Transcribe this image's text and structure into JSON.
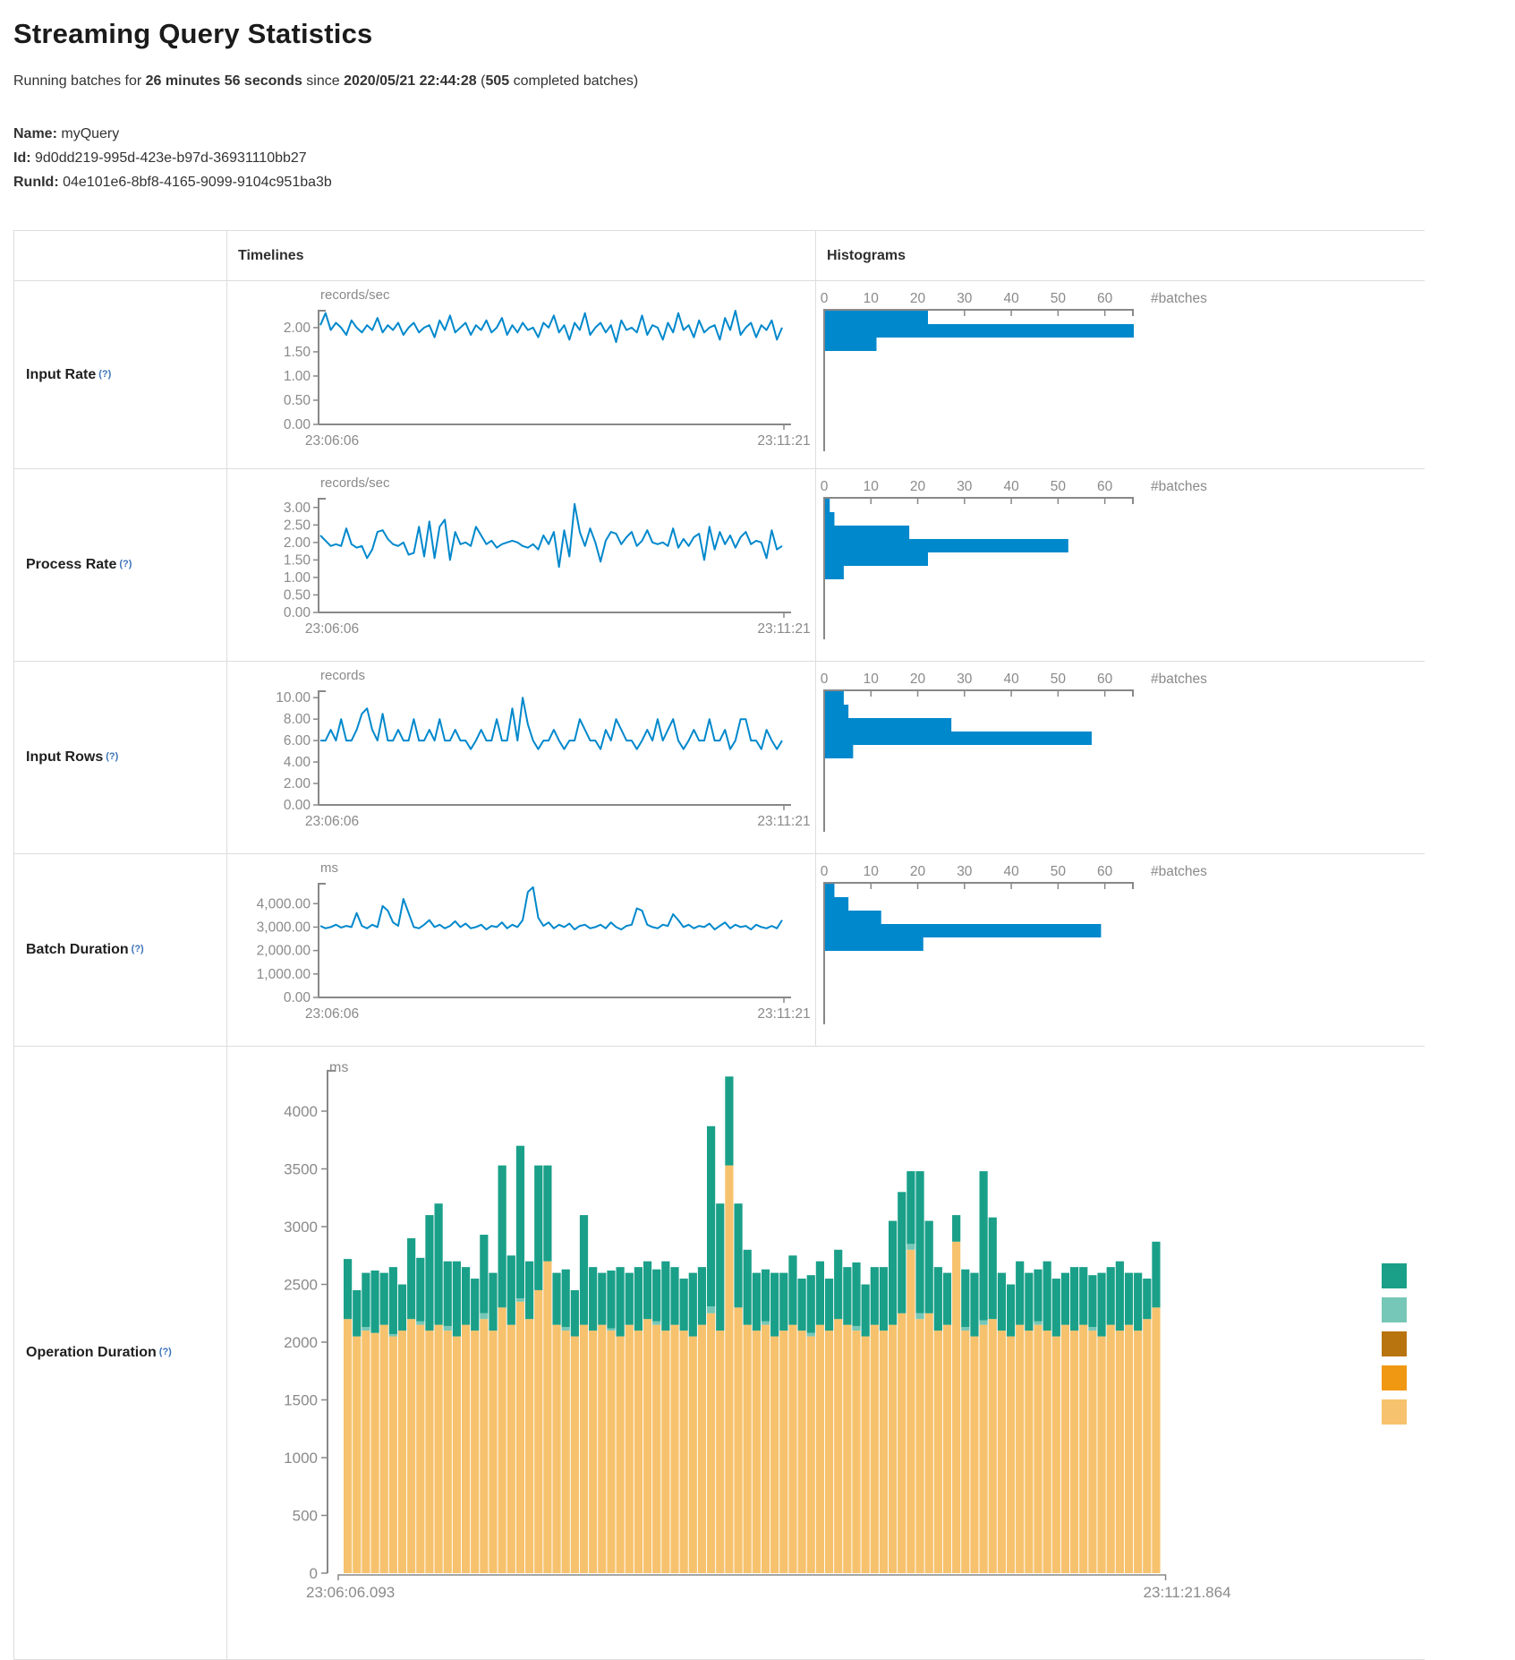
{
  "page": {
    "title": "Streaming Query Statistics",
    "subtitle": {
      "p1": "Running batches for ",
      "bold1": "26 minutes 56 seconds",
      "p2": " since ",
      "bold2": "2020/05/21 22:44:28",
      "p3": " (",
      "bold3": "505",
      "p4": " completed batches)"
    },
    "meta": {
      "name_label": "Name:",
      "name_value": "myQuery",
      "id_label": "Id:",
      "id_value": "9d0dd219-995d-423e-b97d-36931110bb27",
      "runid_label": "RunId:",
      "runid_value": "04e101e6-8bf8-4165-9099-9104c951ba3b"
    }
  },
  "table": {
    "header_timelines": "Timelines",
    "header_histograms": "Histograms"
  },
  "colors": {
    "line": "#0088cc",
    "hist_bar": "#0088cc",
    "axis": "#888888",
    "tick_text": "#8a8a8a",
    "legend": [
      "#1aa089",
      "#76c7b7",
      "#b8740f",
      "#f09812",
      "#f7c26d"
    ],
    "stack_segments": [
      "#f7c26d",
      "#76c7b7",
      "#1aa089"
    ]
  },
  "chart_data": [
    {
      "row_label": "Input Rate",
      "tooltip": "(?)",
      "timeline": {
        "type": "line",
        "unit": "records/sec",
        "x_start": "23:06:06",
        "x_end": "23:11:21",
        "ymax": 2.35,
        "yticks": [
          0,
          0.5,
          1,
          1.5,
          2
        ],
        "ytick_labels": [
          "0.00",
          "0.50",
          "1.00",
          "1.50",
          "2.00"
        ],
        "values": [
          2.05,
          2.3,
          1.95,
          2.1,
          2.0,
          1.85,
          2.15,
          2.0,
          1.9,
          2.05,
          1.95,
          2.2,
          1.9,
          2.05,
          1.95,
          2.1,
          1.85,
          2.0,
          2.1,
          1.9,
          2.0,
          2.05,
          1.8,
          2.15,
          1.95,
          2.25,
          1.9,
          2.0,
          2.1,
          1.85,
          2.05,
          1.95,
          2.15,
          1.9,
          2.0,
          2.2,
          1.85,
          2.05,
          1.9,
          2.1,
          1.95,
          2.0,
          1.8,
          2.1,
          2.0,
          2.25,
          1.9,
          2.05,
          1.75,
          2.1,
          1.95,
          2.3,
          1.85,
          2.0,
          2.1,
          1.9,
          2.05,
          1.7,
          2.15,
          1.95,
          2.0,
          1.9,
          2.25,
          1.85,
          2.05,
          2.0,
          1.75,
          2.1,
          1.9,
          2.3,
          1.95,
          2.05,
          1.8,
          2.15,
          1.9,
          2.0,
          2.05,
          1.75,
          2.2,
          1.95,
          2.35,
          1.85,
          2.0,
          2.1,
          1.8,
          2.05,
          1.95,
          2.15,
          1.75,
          2.0
        ]
      },
      "histogram": {
        "type": "bar",
        "orientation": "horizontal",
        "xlabel": "#batches",
        "xticks": [
          0,
          10,
          20,
          30,
          40,
          50,
          60
        ],
        "xtick_labels": [
          "0",
          "10",
          "20",
          "30",
          "40",
          "50",
          "60"
        ],
        "xmax": 66,
        "values": [
          22,
          66,
          11
        ]
      }
    },
    {
      "row_label": "Process Rate",
      "tooltip": "(?)",
      "timeline": {
        "type": "line",
        "unit": "records/sec",
        "x_start": "23:06:06",
        "x_end": "23:11:21",
        "ymax": 3.25,
        "yticks": [
          0,
          0.5,
          1,
          1.5,
          2,
          2.5,
          3
        ],
        "ytick_labels": [
          "0.00",
          "0.50",
          "1.00",
          "1.50",
          "2.00",
          "2.50",
          "3.00"
        ],
        "values": [
          2.2,
          2.05,
          1.9,
          1.95,
          1.9,
          2.4,
          1.95,
          1.85,
          1.9,
          1.55,
          1.8,
          2.3,
          2.35,
          2.1,
          1.95,
          1.9,
          2.0,
          1.65,
          1.7,
          2.45,
          1.6,
          2.6,
          1.55,
          2.45,
          2.65,
          1.5,
          2.3,
          1.95,
          2.0,
          1.9,
          2.45,
          2.2,
          1.95,
          2.05,
          1.85,
          1.95,
          2.0,
          2.05,
          2.0,
          1.9,
          1.85,
          1.95,
          1.8,
          2.2,
          1.95,
          2.3,
          1.3,
          2.35,
          1.6,
          3.1,
          2.3,
          1.9,
          2.4,
          2.0,
          1.45,
          2.05,
          2.3,
          2.25,
          1.95,
          2.15,
          2.3,
          1.9,
          2.05,
          2.35,
          2.0,
          1.95,
          2.0,
          1.9,
          2.4,
          1.85,
          2.1,
          1.9,
          2.15,
          2.25,
          1.5,
          2.45,
          1.8,
          2.3,
          1.95,
          2.2,
          1.85,
          2.15,
          2.3,
          1.95,
          2.05,
          2.0,
          1.55,
          2.35,
          1.8,
          1.9
        ]
      },
      "histogram": {
        "type": "bar",
        "orientation": "horizontal",
        "xlabel": "#batches",
        "xticks": [
          0,
          10,
          20,
          30,
          40,
          50,
          60
        ],
        "xtick_labels": [
          "0",
          "10",
          "20",
          "30",
          "40",
          "50",
          "60"
        ],
        "xmax": 66,
        "values": [
          1,
          2,
          18,
          52,
          22,
          4
        ]
      }
    },
    {
      "row_label": "Input Rows",
      "tooltip": "(?)",
      "timeline": {
        "type": "line",
        "unit": "records",
        "x_start": "23:06:06",
        "x_end": "23:11:21",
        "ymax": 10.6,
        "yticks": [
          0,
          2,
          4,
          6,
          8,
          10
        ],
        "ytick_labels": [
          "0.00",
          "2.00",
          "4.00",
          "6.00",
          "8.00",
          "10.00"
        ],
        "values": [
          6,
          6,
          7,
          6,
          8,
          6,
          6,
          7,
          8.5,
          9,
          7,
          6,
          8.5,
          6,
          6,
          7,
          6,
          6,
          8,
          6,
          6,
          7,
          6,
          8,
          6,
          6,
          7,
          6,
          6,
          5.2,
          6,
          7,
          6,
          6,
          8,
          6,
          6,
          9,
          6,
          10,
          7.5,
          6,
          5.2,
          6,
          6,
          7,
          6,
          5.2,
          6,
          6,
          8,
          7,
          6,
          6,
          5.2,
          7,
          6,
          8,
          7,
          6,
          6,
          5.2,
          6,
          7,
          6,
          8,
          6,
          7,
          8,
          6,
          5.2,
          6,
          7,
          6,
          6,
          8,
          6,
          6,
          7,
          5.2,
          6,
          8,
          8,
          6,
          6,
          5.2,
          7,
          6,
          5.2,
          6
        ]
      },
      "histogram": {
        "type": "bar",
        "orientation": "horizontal",
        "xlabel": "#batches",
        "xticks": [
          0,
          10,
          20,
          30,
          40,
          50,
          60
        ],
        "xtick_labels": [
          "0",
          "10",
          "20",
          "30",
          "40",
          "50",
          "60"
        ],
        "xmax": 66,
        "values": [
          4,
          5,
          27,
          57,
          6
        ]
      }
    },
    {
      "row_label": "Batch Duration",
      "tooltip": "(?)",
      "timeline": {
        "type": "line",
        "unit": "ms",
        "x_start": "23:06:06",
        "x_end": "23:11:21",
        "ymax": 4850,
        "yticks": [
          0,
          1000,
          2000,
          3000,
          4000
        ],
        "ytick_labels": [
          "0.00",
          "1,000.00",
          "2,000.00",
          "3,000.00",
          "4,000.00"
        ],
        "values": [
          3050,
          2950,
          3000,
          3100,
          2980,
          3050,
          3000,
          3600,
          3050,
          2950,
          3100,
          3000,
          3900,
          3700,
          3200,
          3050,
          4200,
          3600,
          3000,
          2950,
          3100,
          3300,
          3000,
          3100,
          2950,
          3050,
          3250,
          3000,
          3150,
          2950,
          3000,
          3100,
          2900,
          3050,
          3000,
          3200,
          2950,
          3100,
          3000,
          3300,
          4500,
          4700,
          3400,
          3050,
          3200,
          2950,
          3100,
          3000,
          3150,
          2900,
          3050,
          3100,
          2950,
          3000,
          3100,
          2950,
          3200,
          3000,
          2900,
          3050,
          3100,
          3800,
          3700,
          3100,
          3000,
          2950,
          3100,
          3050,
          3550,
          3300,
          3000,
          3100,
          2950,
          3050,
          3000,
          3150,
          2900,
          3050,
          3200,
          2950,
          3100,
          3000,
          3050,
          2900,
          3100,
          3000,
          2950,
          3050,
          2950,
          3300
        ]
      },
      "histogram": {
        "type": "bar",
        "orientation": "horizontal",
        "xlabel": "#batches",
        "xticks": [
          0,
          10,
          20,
          30,
          40,
          50,
          60
        ],
        "xtick_labels": [
          "0",
          "10",
          "20",
          "30",
          "40",
          "50",
          "60"
        ],
        "xmax": 66,
        "values": [
          2,
          5,
          12,
          59,
          21
        ]
      }
    },
    {
      "row_label": "Operation Duration",
      "tooltip": "(?)",
      "timeline": {
        "type": "stacked-bar",
        "unit": "ms",
        "x_start": "23:06:06.093",
        "x_end": "23:11:21.864",
        "ymax": 4350,
        "yticks": [
          0,
          500,
          1000,
          1500,
          2000,
          2500,
          3000,
          3500,
          4000
        ],
        "ytick_labels": [
          "0",
          "500",
          "1000",
          "1500",
          "2000",
          "2500",
          "3000",
          "3500",
          "4000"
        ],
        "series_order": [
          "base",
          "sliver",
          "top"
        ],
        "bars": [
          [
            2200,
            0,
            520
          ],
          [
            2050,
            0,
            400
          ],
          [
            2100,
            30,
            470
          ],
          [
            2080,
            0,
            540
          ],
          [
            2150,
            0,
            450
          ],
          [
            2050,
            20,
            580
          ],
          [
            2100,
            0,
            400
          ],
          [
            2200,
            0,
            700
          ],
          [
            2150,
            30,
            550
          ],
          [
            2100,
            0,
            1000
          ],
          [
            2150,
            0,
            1050
          ],
          [
            2100,
            40,
            560
          ],
          [
            2050,
            0,
            650
          ],
          [
            2150,
            0,
            500
          ],
          [
            2100,
            0,
            450
          ],
          [
            2200,
            50,
            680
          ],
          [
            2100,
            0,
            500
          ],
          [
            2300,
            0,
            1230
          ],
          [
            2150,
            0,
            600
          ],
          [
            2350,
            30,
            1320
          ],
          [
            2200,
            0,
            500
          ],
          [
            2450,
            0,
            1080
          ],
          [
            2700,
            0,
            830
          ],
          [
            2150,
            0,
            450
          ],
          [
            2100,
            30,
            500
          ],
          [
            2050,
            0,
            400
          ],
          [
            2150,
            0,
            950
          ],
          [
            2100,
            0,
            550
          ],
          [
            2150,
            0,
            450
          ],
          [
            2100,
            20,
            500
          ],
          [
            2050,
            0,
            600
          ],
          [
            2150,
            0,
            450
          ],
          [
            2100,
            0,
            550
          ],
          [
            2200,
            0,
            500
          ],
          [
            2150,
            30,
            450
          ],
          [
            2100,
            0,
            600
          ],
          [
            2150,
            0,
            500
          ],
          [
            2100,
            0,
            450
          ],
          [
            2050,
            0,
            550
          ],
          [
            2150,
            0,
            500
          ],
          [
            2250,
            60,
            1560
          ],
          [
            2100,
            0,
            1100
          ],
          [
            3530,
            0,
            770
          ],
          [
            2300,
            0,
            900
          ],
          [
            2150,
            0,
            650
          ],
          [
            2100,
            0,
            500
          ],
          [
            2150,
            30,
            450
          ],
          [
            2050,
            0,
            550
          ],
          [
            2100,
            0,
            500
          ],
          [
            2150,
            0,
            600
          ],
          [
            2100,
            0,
            450
          ],
          [
            2050,
            30,
            500
          ],
          [
            2150,
            0,
            550
          ],
          [
            2100,
            0,
            450
          ],
          [
            2200,
            0,
            600
          ],
          [
            2150,
            0,
            500
          ],
          [
            2100,
            40,
            550
          ],
          [
            2050,
            0,
            450
          ],
          [
            2150,
            0,
            500
          ],
          [
            2100,
            0,
            550
          ],
          [
            2150,
            0,
            900
          ],
          [
            2250,
            0,
            1050
          ],
          [
            2800,
            50,
            630
          ],
          [
            2200,
            50,
            1230
          ],
          [
            2250,
            0,
            800
          ],
          [
            2100,
            0,
            550
          ],
          [
            2150,
            0,
            450
          ],
          [
            2870,
            0,
            230
          ],
          [
            2100,
            30,
            500
          ],
          [
            2050,
            0,
            550
          ],
          [
            2150,
            40,
            1290
          ],
          [
            2200,
            0,
            880
          ],
          [
            2100,
            0,
            500
          ],
          [
            2050,
            0,
            450
          ],
          [
            2150,
            0,
            550
          ],
          [
            2100,
            0,
            500
          ],
          [
            2150,
            30,
            450
          ],
          [
            2100,
            0,
            600
          ],
          [
            2050,
            0,
            500
          ],
          [
            2150,
            0,
            450
          ],
          [
            2100,
            0,
            550
          ],
          [
            2150,
            0,
            500
          ],
          [
            2100,
            30,
            450
          ],
          [
            2050,
            0,
            550
          ],
          [
            2150,
            0,
            500
          ],
          [
            2100,
            0,
            600
          ],
          [
            2150,
            0,
            450
          ],
          [
            2100,
            0,
            500
          ],
          [
            2200,
            0,
            350
          ],
          [
            2300,
            0,
            570
          ]
        ],
        "legend_swatches": 5
      }
    }
  ]
}
